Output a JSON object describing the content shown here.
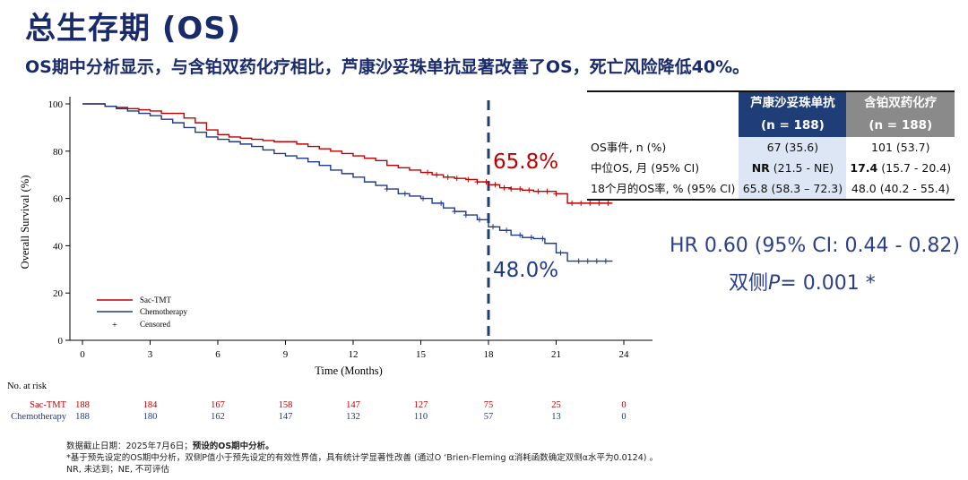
{
  "header": {
    "title": "总生存期 (OS)",
    "subtitle": "OS期中分析显示，与含铂双药化疗相比，芦康沙妥珠单抗显著改善了OS，死亡风险降低40%。"
  },
  "colors": {
    "sac": "#c00000",
    "chemo": "#1f3a8c",
    "accent": "#1a2b6b",
    "dash": "#1f3e77"
  },
  "chart_data": {
    "type": "line",
    "subtype": "kaplan-meier",
    "xlabel": "Time (Months)",
    "ylabel": "Overall Survival (%)",
    "xlim": [
      0,
      24
    ],
    "ylim": [
      0,
      100
    ],
    "x_ticks": [
      0,
      3,
      6,
      9,
      12,
      15,
      18,
      21,
      24
    ],
    "y_ticks": [
      0,
      20,
      40,
      60,
      80,
      100
    ],
    "reference_line": {
      "x": 18
    },
    "legend": {
      "placement": "bottom-left",
      "items": [
        "Sac-TMT",
        "Chemotherapy",
        "Censored"
      ],
      "censored_symbol": "+"
    },
    "annotations": {
      "sac_18m": "65.8%",
      "chemo_18m": "48.0%"
    },
    "series": [
      {
        "name": "Sac-TMT",
        "color": "#c00000",
        "x": [
          0,
          1,
          1.5,
          2,
          2.5,
          3,
          3.5,
          4.5,
          5,
          5.5,
          6,
          6.5,
          7,
          7.5,
          8,
          8.5,
          9,
          9.5,
          10,
          10.5,
          11,
          11.5,
          12,
          12.5,
          13,
          13.5,
          14,
          14.5,
          15,
          15.5,
          16,
          16.5,
          17,
          17.5,
          18,
          18.5,
          19,
          19.5,
          20,
          20.5,
          21,
          21.5,
          23.5
        ],
        "y": [
          100,
          99,
          98.5,
          98,
          97.5,
          97,
          96,
          94,
          92,
          89,
          87,
          86,
          85.5,
          85,
          84.5,
          84,
          84,
          83,
          82,
          81,
          80,
          79,
          78,
          77,
          76,
          74,
          73,
          72,
          71,
          70,
          69,
          68.5,
          68,
          67,
          65.8,
          64.5,
          64,
          63.5,
          63,
          63,
          62,
          58,
          58
        ],
        "censored_x": [
          15.3,
          15.7,
          16.2,
          16.6,
          17.1,
          17.5,
          17.9,
          18.3,
          18.7,
          19.0,
          19.4,
          19.8,
          20.2,
          20.6,
          21.0,
          21.7,
          22.1,
          22.5,
          22.9,
          23.3
        ]
      },
      {
        "name": "Chemotherapy",
        "color": "#1f3a8c",
        "x": [
          0,
          1,
          1.5,
          2,
          2.5,
          3,
          3.5,
          4,
          4.5,
          5,
          5.5,
          6,
          6.5,
          7,
          7.5,
          8,
          8.5,
          9,
          9.5,
          10,
          10.5,
          11,
          11.5,
          12,
          12.5,
          13,
          13.5,
          14,
          14.5,
          15,
          15.5,
          16,
          16.5,
          17,
          17.5,
          18,
          18.5,
          19,
          19.5,
          20,
          20.5,
          21,
          21.5,
          23.5
        ],
        "y": [
          100,
          99,
          98,
          97,
          96,
          95,
          93.5,
          92,
          90,
          88,
          86,
          85,
          84,
          83,
          82,
          80.5,
          79,
          78,
          77,
          75.5,
          74,
          72,
          70.5,
          69,
          67,
          65.5,
          64,
          62,
          61,
          60,
          58,
          56,
          54.5,
          53,
          51,
          48,
          46.5,
          44.5,
          43.5,
          43,
          41,
          37,
          33.5,
          33.5
        ],
        "censored_x": [
          13.5,
          14.3,
          15.1,
          15.9,
          16.5,
          17.0,
          17.6,
          18.2,
          18.8,
          19.4,
          19.9,
          20.4,
          21.2,
          22.0,
          22.4,
          22.8,
          23.2
        ]
      }
    ],
    "risk_table": {
      "title": "No. at risk",
      "times": [
        0,
        3,
        6,
        9,
        12,
        15,
        18,
        21,
        24
      ],
      "rows": [
        {
          "name": "Sac-TMT",
          "values": [
            188,
            184,
            167,
            158,
            147,
            127,
            75,
            25,
            0
          ]
        },
        {
          "name": "Chemotherapy",
          "values": [
            188,
            180,
            162,
            147,
            132,
            110,
            57,
            13,
            0
          ]
        }
      ]
    }
  },
  "summary_table": {
    "col1_name": "芦康沙妥珠单抗",
    "col1_n": "(n = 188)",
    "col2_name": "含铂双药化疗",
    "col2_n": "(n = 188)",
    "rows": [
      {
        "label": "OS事件, n (%)",
        "v1": "67 (35.6)",
        "v2": "101 (53.7)"
      },
      {
        "label": "中位OS, 月 (95% CI)",
        "v1_main": "NR",
        "v1_ci": "(21.5 - NE)",
        "v2_main": "17.4",
        "v2_ci": "(15.7 - 20.4)"
      },
      {
        "label": "18个月的OS率, % (95% CI)",
        "v1": "65.8 (58.3 – 72.3)",
        "v2": "48.0 (40.2 - 55.4)"
      }
    ]
  },
  "stats": {
    "hr": "HR 0.60 (95% CI: 0.44 - 0.82)",
    "p_prefix": "双侧",
    "p_symbol": "P",
    "p_suffix": "= 0.001 *"
  },
  "footnotes": {
    "line1_plain": "数据截止日期：2025年7月6日；",
    "line1_bold": "预设的OS期中分析。",
    "line2": "*基于预先设定的OS期中分析，双侧P值小于预先设定的有效性界值，具有统计学显著性改善 (通过O ‘Brien-Fleming α消耗函数确定双侧α水平为0.0124) 。",
    "line3": "NR, 未达到；NE, 不可评估"
  }
}
